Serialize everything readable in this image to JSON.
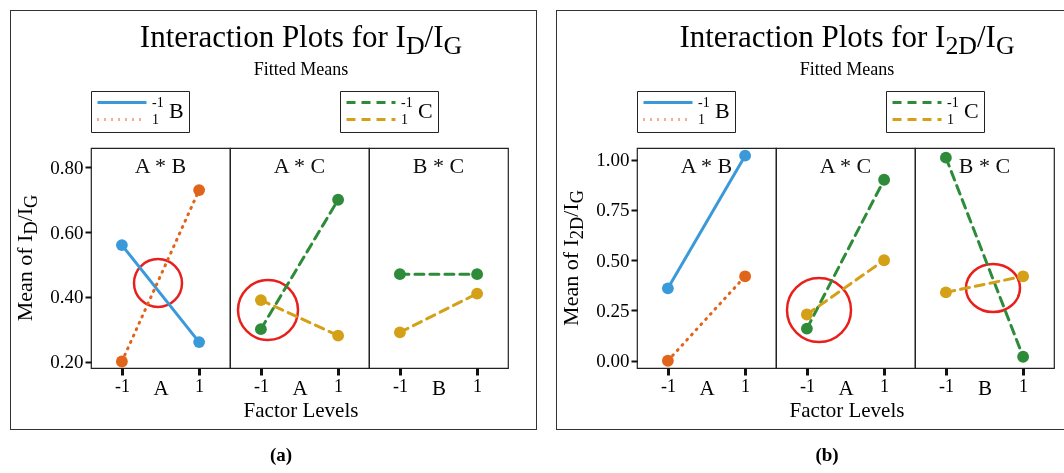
{
  "chart_data": [
    {
      "type": "other",
      "title": "Interaction Plots for I$_{D}$/I$_{G}$",
      "subtitle": "Fitted Means",
      "annotations": [
        "Factor Levels",
        "(a)"
      ]
    },
    {
      "type": "line",
      "title": "A * B",
      "xlabel": "A",
      "ylabel": "Mean of I$_{D}$/I$_{G}$",
      "categories": [
        "-1",
        "1"
      ],
      "ylim": [
        0.18,
        0.86
      ],
      "yticks": [
        {
          "value": 0.2,
          "label": "0.20"
        },
        {
          "value": 0.4,
          "label": "0.40"
        },
        {
          "value": 0.6,
          "label": "0.60"
        },
        {
          "value": 0.8,
          "label": "0.80"
        }
      ],
      "legend": "top",
      "legend_title": "B",
      "marker": "circle",
      "series": [
        {
          "name": "-1",
          "color": "#3a9ad9",
          "line_style": "solid",
          "values": [
            0.56,
            0.26
          ]
        },
        {
          "name": "1",
          "color": "#e0641a",
          "line_style": "dotted",
          "values": [
            0.2,
            0.73
          ]
        }
      ]
    },
    {
      "type": "line",
      "title": "A * C",
      "xlabel": "A",
      "categories": [
        "-1",
        "1"
      ],
      "ylim": [
        0.18,
        0.86
      ],
      "tick_labels": "x",
      "legend": "top",
      "legend_title": "C",
      "marker": "circle",
      "series": [
        {
          "name": "-1",
          "color": "#2e8b3a",
          "line_style": "dashed",
          "values": [
            0.3,
            0.7
          ]
        },
        {
          "name": "1",
          "color": "#d4a017",
          "line_style": "dashed",
          "values": [
            0.39,
            0.28
          ]
        }
      ]
    },
    {
      "type": "line",
      "title": "B * C",
      "xlabel": "B",
      "categories": [
        "-1",
        "1"
      ],
      "ylim": [
        0.18,
        0.86
      ],
      "tick_labels": "x",
      "marker": "circle",
      "series": [
        {
          "color": "#2e8b3a",
          "line_style": "dashed",
          "values": [
            0.47,
            0.47
          ]
        },
        {
          "color": "#d4a017",
          "line_style": "dashed",
          "values": [
            0.29,
            0.41
          ]
        }
      ]
    },
    {
      "type": "other",
      "title": "Interaction Plots for I$_{2D}$/I$_{G}$",
      "subtitle": "Fitted Means",
      "annotations": [
        "Factor Levels",
        "(b)"
      ]
    },
    {
      "type": "line",
      "title": "A * B",
      "xlabel": "A",
      "ylabel": "Mean of I$_{2D}$/I$_{G}$",
      "categories": [
        "-1",
        "1"
      ],
      "ylim": [
        -0.036,
        1.058
      ],
      "yticks": [
        {
          "value": 0,
          "label": "0.00"
        },
        {
          "value": 0.25,
          "label": "0.25"
        },
        {
          "value": 0.5,
          "label": "0.50"
        },
        {
          "value": 0.75,
          "label": "0.75"
        },
        {
          "value": 1,
          "label": "1.00"
        }
      ],
      "legend": "top",
      "legend_title": "B",
      "marker": "circle",
      "series": [
        {
          "name": "-1",
          "color": "#3a9ad9",
          "line_style": "solid",
          "values": [
            0.36,
            1.02
          ]
        },
        {
          "name": "1",
          "color": "#e0641a",
          "line_style": "dotted",
          "values": [
            0,
            0.42
          ]
        }
      ]
    },
    {
      "type": "line",
      "title": "A * C",
      "xlabel": "A",
      "categories": [
        "-1",
        "1"
      ],
      "ylim": [
        -0.036,
        1.058
      ],
      "tick_labels": "x",
      "legend": "top",
      "legend_title": "C",
      "marker": "circle",
      "series": [
        {
          "name": "-1",
          "color": "#2e8b3a",
          "line_style": "dashed",
          "values": [
            0.16,
            0.9
          ]
        },
        {
          "name": "1",
          "color": "#d4a017",
          "line_style": "dashed",
          "values": [
            0.23,
            0.5
          ]
        }
      ]
    },
    {
      "type": "line",
      "title": "B * C",
      "xlabel": "B",
      "categories": [
        "-1",
        "1"
      ],
      "ylim": [
        -0.036,
        1.058
      ],
      "tick_labels": "x",
      "marker": "circle",
      "series": [
        {
          "color": "#2e8b3a",
          "line_style": "dashed",
          "values": [
            1.01,
            0.02
          ]
        },
        {
          "color": "#d4a017",
          "line_style": "dashed",
          "values": [
            0.34,
            0.42
          ]
        }
      ]
    }
  ]
}
